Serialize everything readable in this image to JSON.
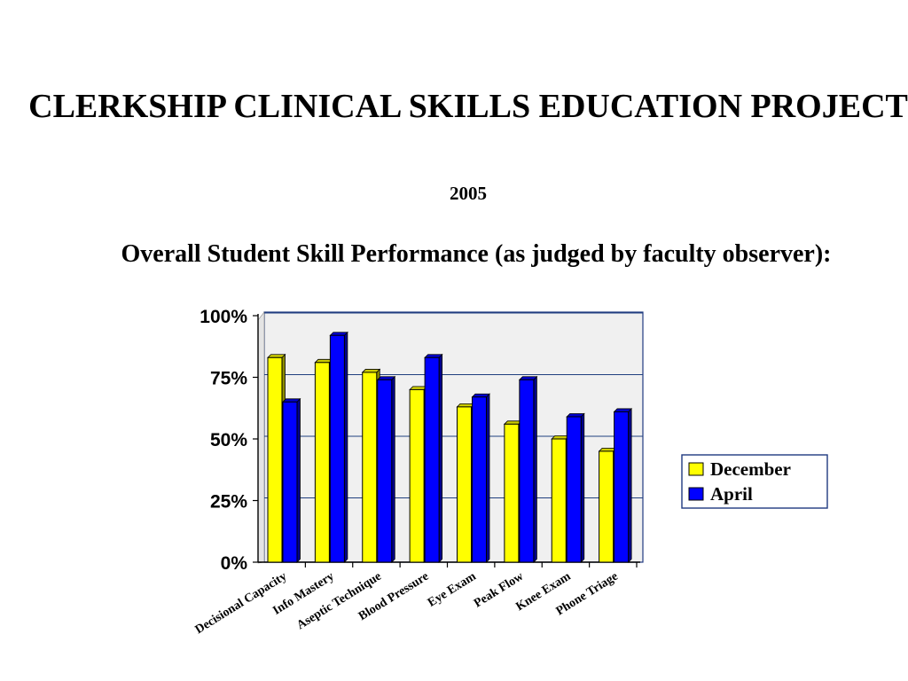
{
  "slide": {
    "title": "CLERKSHIP CLINICAL SKILLS EDUCATION PROJECT",
    "year": "2005",
    "subtitle": "Overall Student Skill Performance (as judged by faculty observer):"
  },
  "chart_data": {
    "type": "bar",
    "categories": [
      "Decisional Capacity",
      "Info Mastery",
      "Aseptic Technique",
      "Blood Pressure",
      "Eye Exam",
      "Peak Flow",
      "Knee Exam",
      "Phone Triage"
    ],
    "series": [
      {
        "name": "December",
        "values": [
          83,
          81,
          77,
          70,
          63,
          56,
          50,
          45
        ],
        "color": "#ffff00"
      },
      {
        "name": "April",
        "values": [
          65,
          92,
          74,
          83,
          67,
          74,
          59,
          61
        ],
        "color": "#0000ff"
      }
    ],
    "ylim": [
      0,
      100
    ],
    "yticks": [
      "0%",
      "25%",
      "50%",
      "75%",
      "100%"
    ],
    "ytick_values": [
      0,
      25,
      50,
      75,
      100
    ],
    "grid": true,
    "legend_position": "right",
    "wall_color": "#f0f0f0",
    "grid_color": "#1f3f7f"
  }
}
